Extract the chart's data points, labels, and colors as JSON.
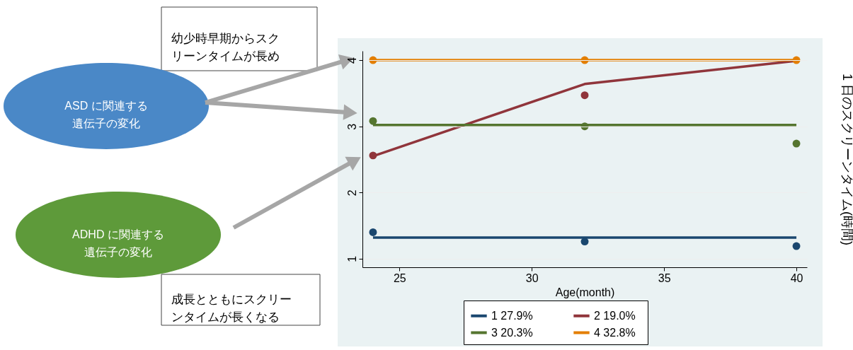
{
  "chart_data": {
    "type": "line",
    "xlabel": "Age(month)",
    "ylabel": "1 日のスクリーンタイム(時間)",
    "xlim": [
      23.6,
      40.4
    ],
    "xticks": [
      25,
      30,
      35,
      40
    ],
    "ylim": [
      0.87,
      4.14
    ],
    "yticks": [
      1,
      2,
      3,
      4
    ],
    "grid": "y",
    "legend": "bottom",
    "series": [
      {
        "name": "1   27.9%",
        "color": "#1a476f",
        "x": [
          24,
          32,
          40
        ],
        "values": [
          1.32,
          1.32,
          1.32
        ]
      },
      {
        "name": "2   19.0%",
        "color": "#90353b",
        "x": [
          24,
          32,
          40
        ],
        "values": [
          2.55,
          3.64,
          3.99
        ]
      },
      {
        "name": "3   20.3%",
        "color": "#55752f",
        "x": [
          24,
          32,
          40
        ],
        "values": [
          3.02,
          3.02,
          3.02
        ]
      },
      {
        "name": "4   32.8%",
        "color": "#e37e00",
        "x": [
          24,
          32,
          40
        ],
        "values": [
          4.0,
          4.0,
          4.0
        ]
      },
      {
        "type": "scatter",
        "color": "#1a476f",
        "x": [
          24,
          32,
          40
        ],
        "values": [
          1.4,
          1.26,
          1.19
        ]
      },
      {
        "type": "scatter",
        "color": "#90353b",
        "x": [
          24,
          32
        ],
        "values": [
          2.56,
          3.47
        ]
      },
      {
        "type": "scatter",
        "color": "#55752f",
        "x": [
          24,
          32,
          40
        ],
        "values": [
          3.08,
          3.0,
          2.74
        ]
      },
      {
        "type": "scatter",
        "color": "#e37e00",
        "x": [
          24,
          32,
          40
        ],
        "values": [
          4.0,
          4.0,
          4.0
        ]
      }
    ],
    "annotations": [
      "幼少時早期からスクリーンタイムが長め",
      "ASD に関連する遺伝子の変化",
      "ADHD に関連する遺伝子の変化",
      "成長とともにスクリーンタイムが長くなる"
    ]
  }
}
